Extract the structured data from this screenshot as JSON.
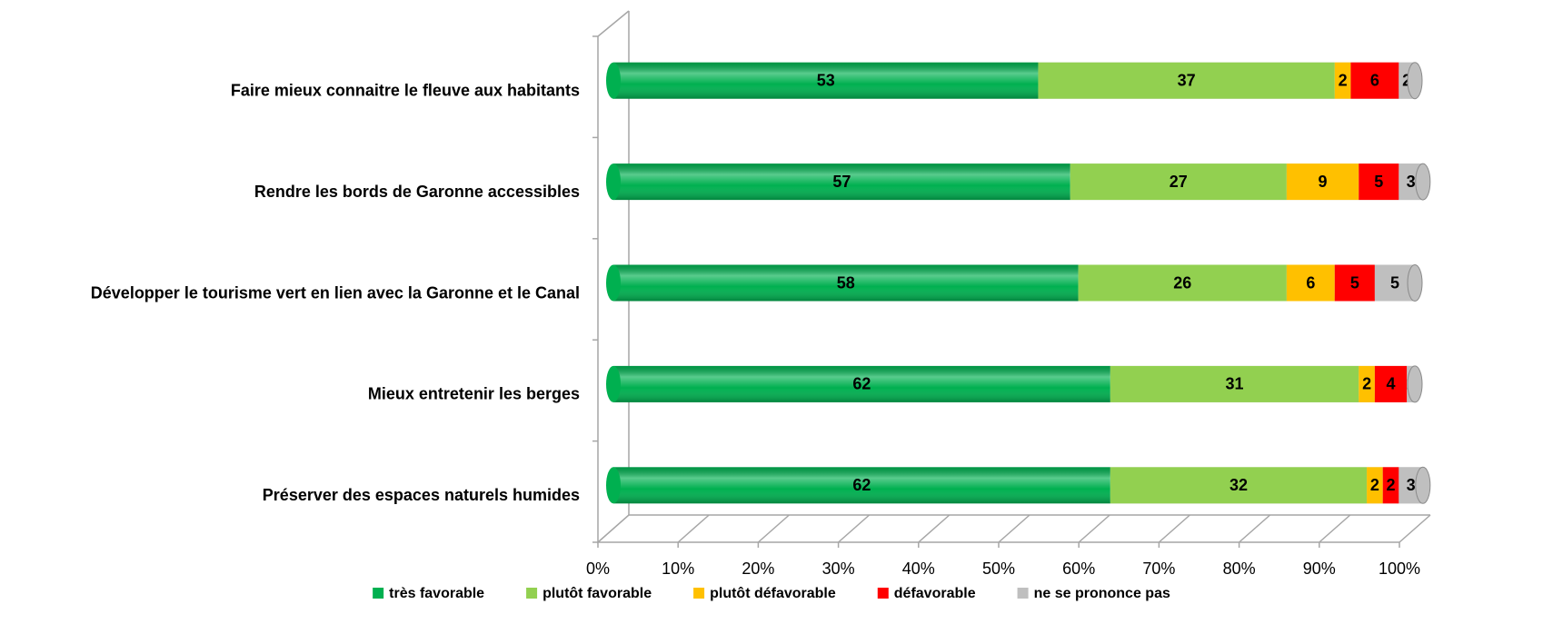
{
  "chart_data": {
    "type": "stacked_barh",
    "categories": [
      "Faire mieux connaitre le fleuve aux habitants",
      "Rendre les bords de Garonne accessibles",
      "Développer le tourisme vert en lien avec la Garonne et le Canal",
      "Mieux entretenir les berges",
      "Préserver des espaces naturels humides"
    ],
    "series": [
      {
        "name": "très favorable",
        "color": "#00b050",
        "values": [
          53,
          57,
          58,
          62,
          62
        ]
      },
      {
        "name": "plutôt favorable",
        "color": "#92d050",
        "values": [
          37,
          27,
          26,
          31,
          32
        ]
      },
      {
        "name": "plutôt défavorable",
        "color": "#ffc000",
        "values": [
          2,
          9,
          6,
          2,
          2
        ]
      },
      {
        "name": "défavorable",
        "color": "#ff0000",
        "values": [
          6,
          5,
          5,
          4,
          2
        ]
      },
      {
        "name": "ne se prononce pas",
        "color": "#bfbfbf",
        "values": [
          2,
          3,
          5,
          1,
          3
        ]
      }
    ],
    "xlim": [
      0,
      100
    ],
    "xticks": [
      {
        "value": 0,
        "label": "0%"
      },
      {
        "value": 10,
        "label": "10%"
      },
      {
        "value": 20,
        "label": "20%"
      },
      {
        "value": 30,
        "label": "30%"
      },
      {
        "value": 40,
        "label": "40%"
      },
      {
        "value": 50,
        "label": "50%"
      },
      {
        "value": 60,
        "label": "60%"
      },
      {
        "value": 70,
        "label": "70%"
      },
      {
        "value": 80,
        "label": "80%"
      },
      {
        "value": 90,
        "label": "90%"
      },
      {
        "value": 100,
        "label": "100%"
      }
    ],
    "legend": "bottom"
  }
}
